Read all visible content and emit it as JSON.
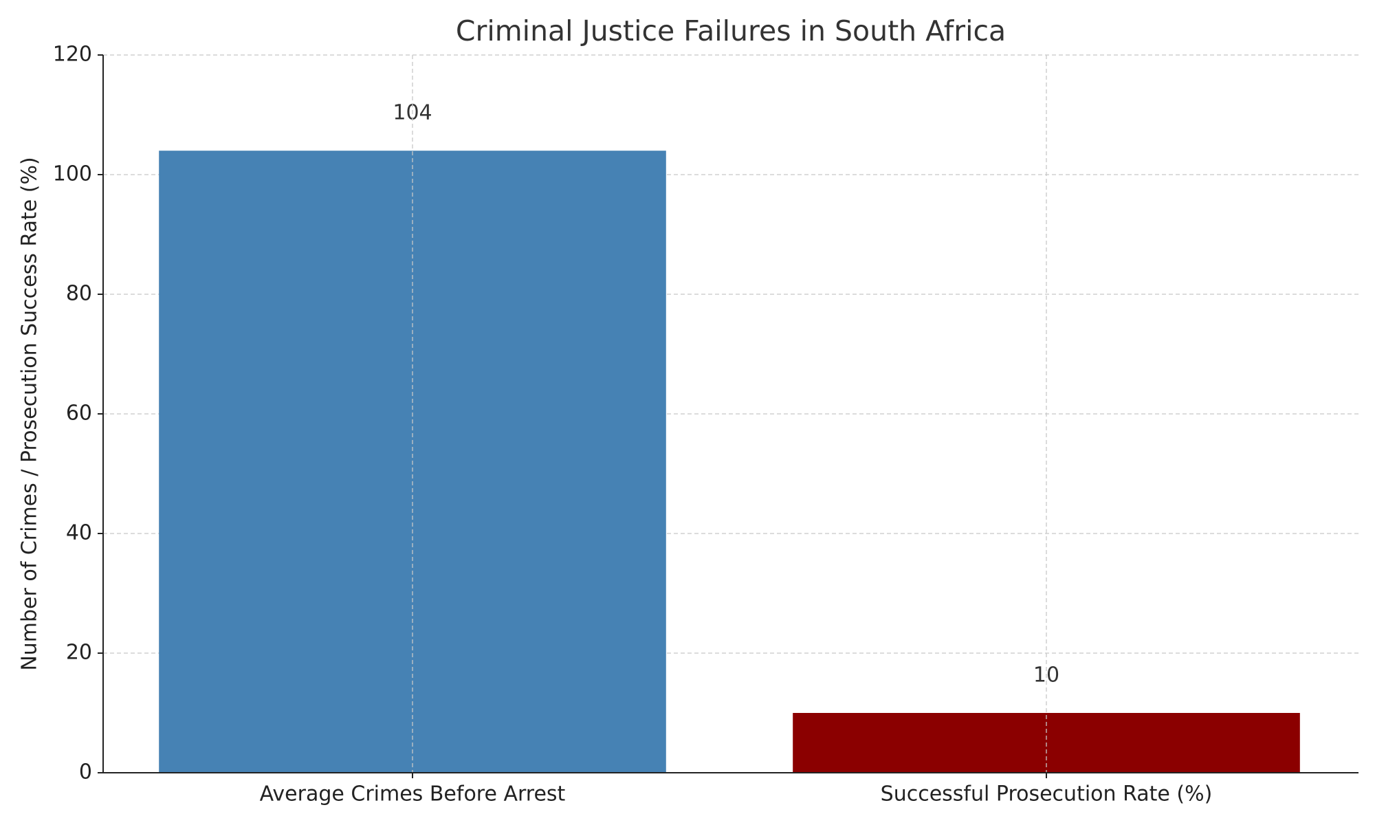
{
  "chart_data": {
    "type": "bar",
    "title": "Criminal Justice Failures in South Africa",
    "ylabel": "Number of Crimes / Prosecution Success Rate (%)",
    "categories": [
      "Average Crimes Before Arrest",
      "Successful Prosecution Rate (%)"
    ],
    "values": [
      104,
      10
    ],
    "colors": [
      "#4682b4",
      "#8b0000"
    ],
    "ylim": [
      0,
      120
    ],
    "yticks": [
      0,
      20,
      40,
      60,
      80,
      100,
      120
    ],
    "grid": true
  }
}
